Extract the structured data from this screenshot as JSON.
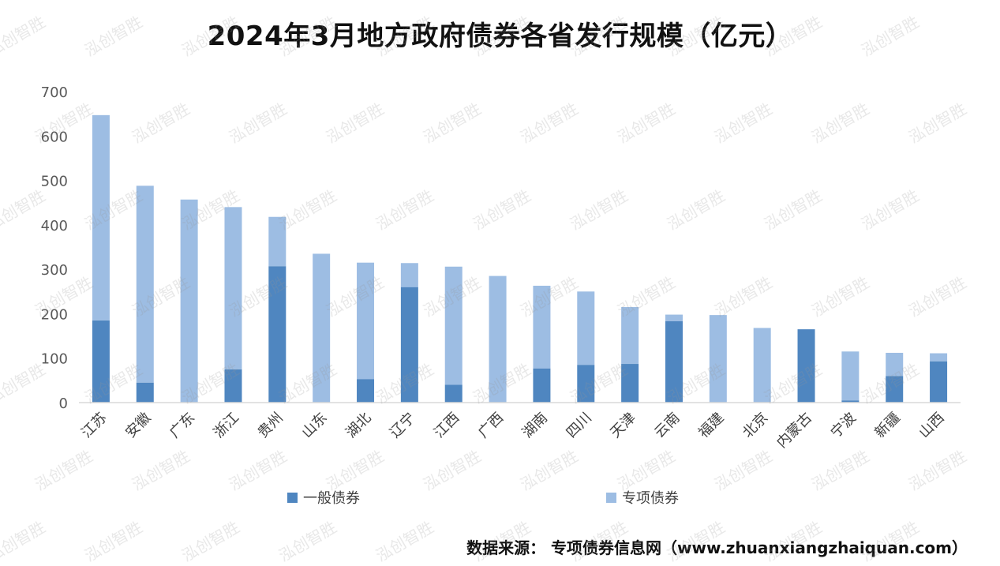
{
  "chart_data": {
    "type": "bar",
    "stacked": true,
    "title": "2024年3月地方政府债券各省发行规模（亿元）",
    "categories": [
      "江苏",
      "安徽",
      "广东",
      "浙江",
      "贵州",
      "山东",
      "湖北",
      "辽宁",
      "江西",
      "广西",
      "湖南",
      "四川",
      "天津",
      "云南",
      "福建",
      "北京",
      "内蒙古",
      "宁波",
      "新疆",
      "山西"
    ],
    "series": [
      {
        "name": "一般债券",
        "color": "#4f86c0",
        "values": [
          185,
          45,
          0,
          75,
          307,
          0,
          53,
          260,
          40,
          0,
          77,
          85,
          87,
          183,
          0,
          0,
          165,
          5,
          60,
          93
        ]
      },
      {
        "name": "专项债券",
        "color": "#9dbde3",
        "values": [
          462,
          443,
          457,
          365,
          111,
          335,
          262,
          54,
          266,
          285,
          186,
          165,
          128,
          15,
          197,
          168,
          0,
          110,
          52,
          18
        ]
      }
    ],
    "yticks": [
      0,
      100,
      200,
      300,
      400,
      500,
      600,
      700
    ],
    "ylim": [
      0,
      700
    ],
    "legend_position": "bottom",
    "grid": false,
    "source": "数据来源： 专项债券信息网（www.zhuanxiangzhaiquan.com）",
    "watermark": "泓创智胜"
  }
}
